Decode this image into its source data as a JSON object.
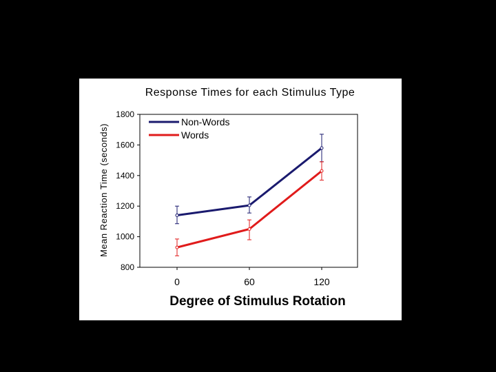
{
  "chart_data": {
    "type": "line",
    "title": "Response Times for each Stimulus Type",
    "xlabel": "Degree of Stimulus Rotation",
    "ylabel": "Mean Reaction Time (seconds)",
    "x": [
      0,
      60,
      120
    ],
    "x_tick_labels": [
      "0",
      "60",
      "120"
    ],
    "ylim": [
      800,
      1800
    ],
    "y_ticks": [
      800,
      1000,
      1200,
      1400,
      1600,
      1800
    ],
    "y_tick_labels": [
      "800",
      "1000",
      "1200",
      "1400",
      "1600",
      "1800"
    ],
    "grid": false,
    "legend_position": "top-left",
    "series": [
      {
        "name": "Non-Words",
        "color": "#1a1a6e",
        "values": [
          1140,
          1205,
          1580
        ],
        "error_low": [
          1085,
          1155,
          1490
        ],
        "error_high": [
          1200,
          1260,
          1670
        ]
      },
      {
        "name": "Words",
        "color": "#e01b1b",
        "values": [
          930,
          1050,
          1430
        ],
        "error_low": [
          875,
          980,
          1370
        ],
        "error_high": [
          985,
          1110,
          1490
        ]
      }
    ]
  }
}
